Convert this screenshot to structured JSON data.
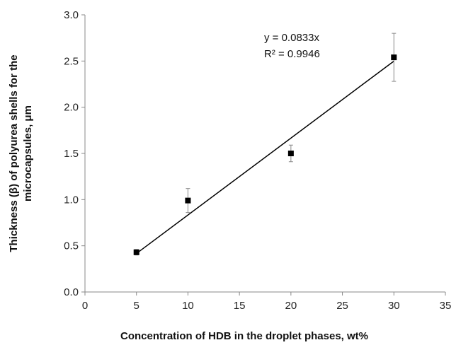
{
  "chart_data": {
    "type": "scatter",
    "title": "",
    "xlabel": "Concentration of HDB in the droplet phases, wt%",
    "ylabel_lines": [
      "Thickness (β)  of polyurea shells for the",
      "microcapsules, μm"
    ],
    "xlim": [
      0,
      35
    ],
    "ylim": [
      0,
      3.0
    ],
    "x_ticks": [
      "0",
      "5",
      "10",
      "15",
      "20",
      "25",
      "30",
      "35"
    ],
    "y_ticks": [
      "0.0",
      "0.5",
      "1.0",
      "1.5",
      "2.0",
      "2.5",
      "3.0"
    ],
    "grid": false,
    "legend": "none",
    "series": [
      {
        "marker": "square",
        "color": "#000000",
        "points": [
          {
            "x": 5,
            "y": 0.43,
            "err": 0.03
          },
          {
            "x": 10,
            "y": 0.99,
            "err": 0.13
          },
          {
            "x": 20,
            "y": 1.5,
            "err": 0.09
          },
          {
            "x": 30,
            "y": 2.54,
            "err": 0.26
          }
        ]
      }
    ],
    "trendline": {
      "type": "linear-through-origin",
      "slope": 0.0833,
      "x_range": [
        5,
        30
      ],
      "equation": "y = 0.0833x",
      "r2": "R² = 0.9946"
    }
  }
}
